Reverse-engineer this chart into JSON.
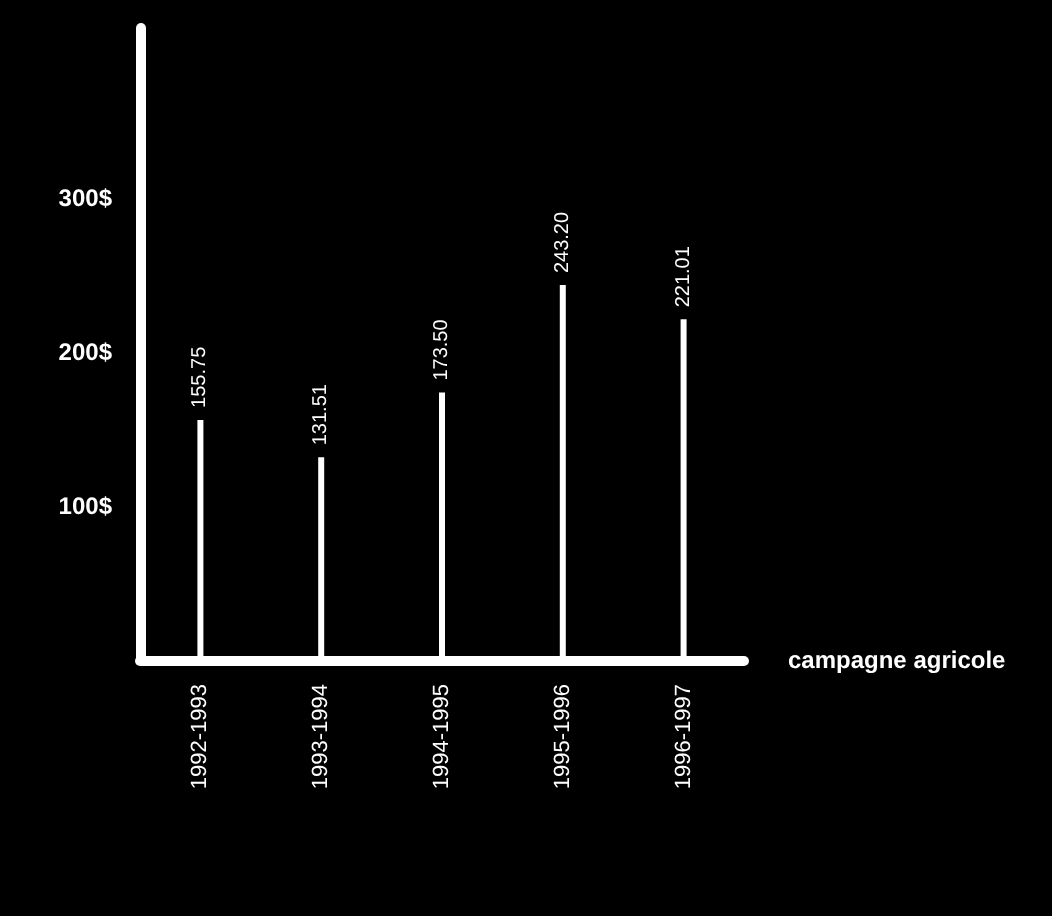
{
  "chart_data": {
    "type": "bar",
    "xlabel": "campagne agricole",
    "categories": [
      "1992-1993",
      "1993-1994",
      "1994-1995",
      "1995-1996",
      "1996-1997"
    ],
    "values": [
      155.75,
      131.51,
      173.5,
      243.2,
      221.01
    ],
    "value_labels": [
      "155.75",
      "131.51",
      "173.50",
      "243.20",
      "221.01"
    ],
    "color": "#ffffff",
    "ylim": [
      0,
      410
    ],
    "yticks": [
      {
        "value": 100,
        "label": "100$"
      },
      {
        "value": 200,
        "label": "200$"
      },
      {
        "value": 300,
        "label": "300$"
      }
    ],
    "grid": false
  }
}
